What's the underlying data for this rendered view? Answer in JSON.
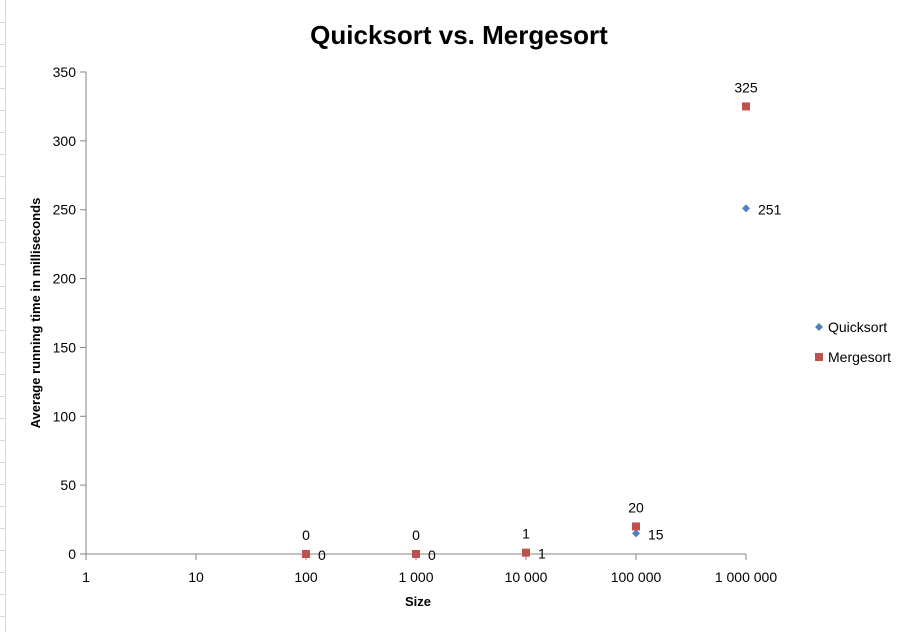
{
  "chart_data": {
    "type": "scatter",
    "title": "Quicksort vs. Mergesort",
    "xlabel": "Size",
    "ylabel": "Average running time in milliseconds",
    "x_scale": "log",
    "x_ticks": [
      1,
      10,
      100,
      1000,
      10000,
      100000,
      1000000
    ],
    "x_tick_labels": [
      "1",
      "10",
      "100",
      "1 000",
      "10 000",
      "100 000",
      "1 000 000"
    ],
    "y_ticks": [
      0,
      50,
      100,
      150,
      200,
      250,
      300,
      350
    ],
    "y_tick_labels": [
      "0",
      "50",
      "100",
      "150",
      "200",
      "250",
      "300",
      "350"
    ],
    "xlim": [
      1,
      1000000
    ],
    "ylim": [
      0,
      350
    ],
    "grid": false,
    "legend_position": "right",
    "series": [
      {
        "name": "Quicksort",
        "color": "#4F81BD",
        "marker": "diamond",
        "label_position": "right",
        "x": [
          100,
          1000,
          10000,
          100000,
          1000000
        ],
        "y": [
          0,
          0,
          1,
          15,
          251
        ],
        "labels": [
          "0",
          "0",
          "1",
          "15",
          "251"
        ]
      },
      {
        "name": "Mergesort",
        "color": "#C0504D",
        "marker": "square",
        "label_position": "above",
        "x": [
          100,
          1000,
          10000,
          100000,
          1000000
        ],
        "y": [
          0,
          0,
          1,
          20,
          325
        ],
        "labels": [
          "0",
          "0",
          "1",
          "20",
          "325"
        ]
      }
    ]
  }
}
